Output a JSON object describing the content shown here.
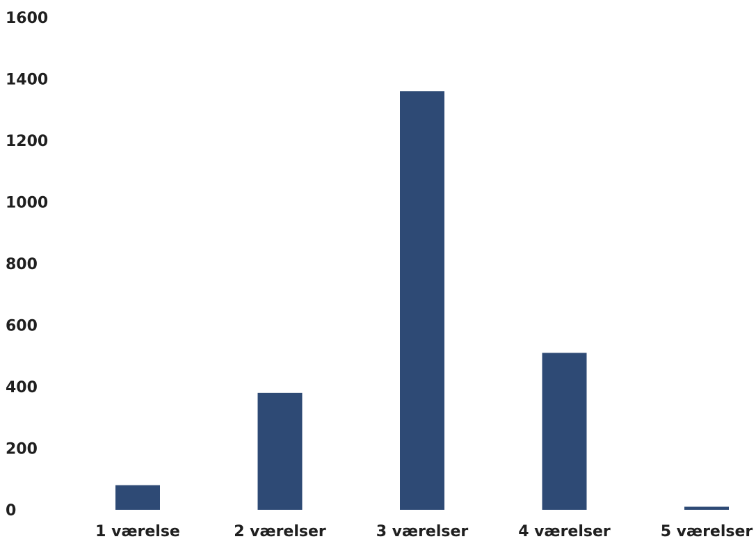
{
  "chart_data": {
    "type": "bar",
    "categories": [
      "1 værelse",
      "2 værelser",
      "3 værelser",
      "4 værelser",
      "5 værelser"
    ],
    "values": [
      80,
      380,
      1360,
      510,
      10
    ],
    "title": "",
    "xlabel": "",
    "ylabel": "",
    "ylim": [
      0,
      1600
    ],
    "yticks": [
      "0",
      "200",
      "400",
      "600",
      "800",
      "1000",
      "1200",
      "1400",
      "1600"
    ],
    "grid": false,
    "legend": "none",
    "bar_color": "#2e4a75"
  }
}
